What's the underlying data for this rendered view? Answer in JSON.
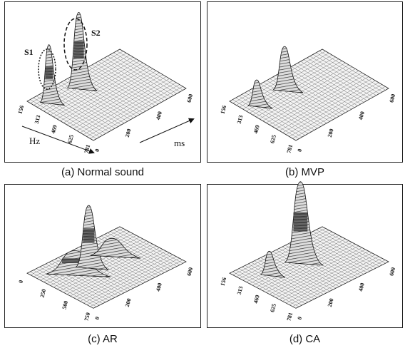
{
  "panels": [
    {
      "caption": "(a) Normal sound",
      "hz_ticks": [
        "156",
        "313",
        "469",
        "625",
        "781"
      ],
      "ms_ticks": [
        "0",
        "200",
        "400",
        "600"
      ],
      "hz_label": "Hz",
      "ms_label": "ms",
      "annotations": [
        "S1",
        "S2"
      ]
    },
    {
      "caption": "(b) MVP",
      "hz_ticks": [
        "156",
        "313",
        "469",
        "625",
        "781"
      ],
      "ms_ticks": [
        "0",
        "200",
        "400",
        "600"
      ]
    },
    {
      "caption": "(c) AR",
      "hz_ticks": [
        "0",
        "250",
        "500",
        "750"
      ],
      "ms_ticks": [
        "0",
        "200",
        "400",
        "600"
      ]
    },
    {
      "caption": "(d) CA",
      "hz_ticks": [
        "156",
        "313",
        "469",
        "625",
        "781"
      ],
      "ms_ticks": [
        "0",
        "200",
        "400",
        "600"
      ]
    }
  ]
}
